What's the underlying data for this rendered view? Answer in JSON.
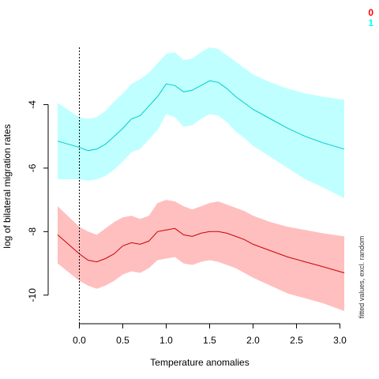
{
  "chart_data": {
    "type": "line",
    "xlabel": "Temperature anomalies",
    "ylabel": "log of bilateral migration rates",
    "side_note": "fitted values, excl. random",
    "xlim": [
      -0.25,
      3.05
    ],
    "ylim": [
      -10.9,
      -2.1
    ],
    "x_ticks": [
      0.0,
      0.5,
      1.0,
      1.5,
      2.0,
      2.5,
      3.0
    ],
    "x_tick_labels": [
      "0.0",
      "0.5",
      "1.0",
      "1.5",
      "2.0",
      "2.5",
      "3.0"
    ],
    "y_ticks": [
      -4,
      -6,
      -8,
      -10
    ],
    "y_tick_labels": [
      "-4",
      "-6",
      "-8",
      "-10"
    ],
    "vline_x": 0,
    "legend_position": "top-right",
    "legend": [
      {
        "label": "0",
        "color": "#ff0000"
      },
      {
        "label": "1",
        "color": "#00ffff"
      }
    ],
    "x": [
      -0.25,
      0.0,
      0.1,
      0.2,
      0.3,
      0.4,
      0.5,
      0.6,
      0.7,
      0.8,
      0.9,
      1.0,
      1.1,
      1.2,
      1.3,
      1.4,
      1.5,
      1.6,
      1.7,
      1.8,
      1.9,
      2.0,
      2.2,
      2.4,
      2.6,
      2.8,
      3.05
    ],
    "series": [
      {
        "name": "0",
        "line_color": "#cc0000",
        "band_color": "#ffbfbf",
        "values": [
          -8.1,
          -8.7,
          -8.9,
          -8.95,
          -8.85,
          -8.7,
          -8.45,
          -8.35,
          -8.4,
          -8.3,
          -8.0,
          -7.95,
          -7.9,
          -8.1,
          -8.15,
          -8.05,
          -8.0,
          -8.0,
          -8.05,
          -8.15,
          -8.25,
          -8.4,
          -8.6,
          -8.8,
          -8.95,
          -9.1,
          -9.3
        ],
        "upper": [
          -7.2,
          -7.85,
          -8.0,
          -8.1,
          -7.9,
          -7.7,
          -7.55,
          -7.5,
          -7.6,
          -7.5,
          -7.1,
          -7.0,
          -7.05,
          -7.2,
          -7.3,
          -7.2,
          -7.1,
          -7.05,
          -7.15,
          -7.25,
          -7.35,
          -7.5,
          -7.7,
          -7.85,
          -7.95,
          -8.05,
          -8.15
        ],
        "lower": [
          -9.0,
          -9.55,
          -9.7,
          -9.8,
          -9.7,
          -9.55,
          -9.35,
          -9.25,
          -9.3,
          -9.15,
          -8.9,
          -8.85,
          -8.8,
          -9.0,
          -9.05,
          -8.95,
          -8.9,
          -8.95,
          -9.05,
          -9.15,
          -9.3,
          -9.45,
          -9.7,
          -9.95,
          -10.1,
          -10.25,
          -10.5
        ]
      },
      {
        "name": "1",
        "line_color": "#00cccc",
        "band_color": "#bfffff",
        "values": [
          -5.15,
          -5.35,
          -5.45,
          -5.4,
          -5.25,
          -5.0,
          -4.75,
          -4.45,
          -4.35,
          -4.05,
          -3.75,
          -3.35,
          -3.4,
          -3.6,
          -3.55,
          -3.4,
          -3.25,
          -3.3,
          -3.5,
          -3.75,
          -3.95,
          -4.15,
          -4.45,
          -4.75,
          -5.0,
          -5.2,
          -5.4
        ],
        "upper": [
          -3.95,
          -4.4,
          -4.45,
          -4.4,
          -4.2,
          -3.9,
          -3.65,
          -3.35,
          -3.2,
          -3.0,
          -2.7,
          -2.4,
          -2.35,
          -2.6,
          -2.55,
          -2.35,
          -2.2,
          -2.25,
          -2.45,
          -2.65,
          -2.85,
          -3.05,
          -3.3,
          -3.5,
          -3.65,
          -3.75,
          -3.85
        ],
        "lower": [
          -6.35,
          -6.35,
          -6.4,
          -6.35,
          -6.25,
          -6.05,
          -5.8,
          -5.5,
          -5.4,
          -5.1,
          -4.8,
          -4.3,
          -4.4,
          -4.7,
          -4.65,
          -4.45,
          -4.3,
          -4.35,
          -4.55,
          -4.85,
          -5.05,
          -5.3,
          -5.65,
          -6.0,
          -6.35,
          -6.6,
          -6.95
        ]
      }
    ]
  }
}
